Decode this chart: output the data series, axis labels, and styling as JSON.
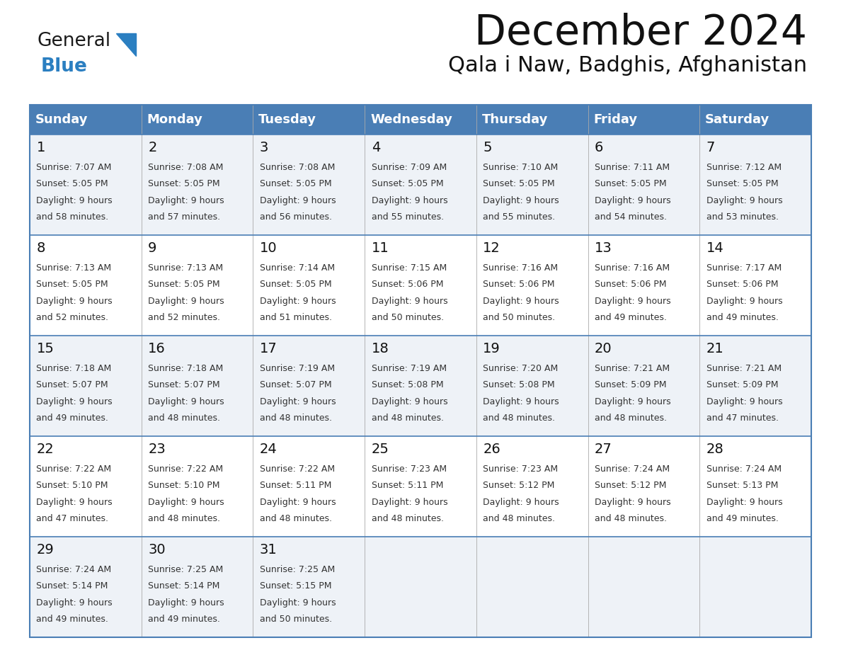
{
  "title": "December 2024",
  "subtitle": "Qala i Naw, Badghis, Afghanistan",
  "header_color": "#4a7eb5",
  "header_text_color": "#ffffff",
  "row_bg_even": "#eef2f7",
  "row_bg_odd": "#ffffff",
  "border_color": "#4a7eb5",
  "inner_border_color": "#cccccc",
  "text_color": "#333333",
  "day_num_color": "#111111",
  "logo_general_color": "#1a1a1a",
  "logo_blue_color": "#2b7fc1",
  "day_names": [
    "Sunday",
    "Monday",
    "Tuesday",
    "Wednesday",
    "Thursday",
    "Friday",
    "Saturday"
  ],
  "calendar_data": [
    [
      {
        "day": 1,
        "sunrise": "7:07 AM",
        "sunset": "5:05 PM",
        "daylight_line1": "9 hours",
        "daylight_line2": "and 58 minutes."
      },
      {
        "day": 2,
        "sunrise": "7:08 AM",
        "sunset": "5:05 PM",
        "daylight_line1": "9 hours",
        "daylight_line2": "and 57 minutes."
      },
      {
        "day": 3,
        "sunrise": "7:08 AM",
        "sunset": "5:05 PM",
        "daylight_line1": "9 hours",
        "daylight_line2": "and 56 minutes."
      },
      {
        "day": 4,
        "sunrise": "7:09 AM",
        "sunset": "5:05 PM",
        "daylight_line1": "9 hours",
        "daylight_line2": "and 55 minutes."
      },
      {
        "day": 5,
        "sunrise": "7:10 AM",
        "sunset": "5:05 PM",
        "daylight_line1": "9 hours",
        "daylight_line2": "and 55 minutes."
      },
      {
        "day": 6,
        "sunrise": "7:11 AM",
        "sunset": "5:05 PM",
        "daylight_line1": "9 hours",
        "daylight_line2": "and 54 minutes."
      },
      {
        "day": 7,
        "sunrise": "7:12 AM",
        "sunset": "5:05 PM",
        "daylight_line1": "9 hours",
        "daylight_line2": "and 53 minutes."
      }
    ],
    [
      {
        "day": 8,
        "sunrise": "7:13 AM",
        "sunset": "5:05 PM",
        "daylight_line1": "9 hours",
        "daylight_line2": "and 52 minutes."
      },
      {
        "day": 9,
        "sunrise": "7:13 AM",
        "sunset": "5:05 PM",
        "daylight_line1": "9 hours",
        "daylight_line2": "and 52 minutes."
      },
      {
        "day": 10,
        "sunrise": "7:14 AM",
        "sunset": "5:05 PM",
        "daylight_line1": "9 hours",
        "daylight_line2": "and 51 minutes."
      },
      {
        "day": 11,
        "sunrise": "7:15 AM",
        "sunset": "5:06 PM",
        "daylight_line1": "9 hours",
        "daylight_line2": "and 50 minutes."
      },
      {
        "day": 12,
        "sunrise": "7:16 AM",
        "sunset": "5:06 PM",
        "daylight_line1": "9 hours",
        "daylight_line2": "and 50 minutes."
      },
      {
        "day": 13,
        "sunrise": "7:16 AM",
        "sunset": "5:06 PM",
        "daylight_line1": "9 hours",
        "daylight_line2": "and 49 minutes."
      },
      {
        "day": 14,
        "sunrise": "7:17 AM",
        "sunset": "5:06 PM",
        "daylight_line1": "9 hours",
        "daylight_line2": "and 49 minutes."
      }
    ],
    [
      {
        "day": 15,
        "sunrise": "7:18 AM",
        "sunset": "5:07 PM",
        "daylight_line1": "9 hours",
        "daylight_line2": "and 49 minutes."
      },
      {
        "day": 16,
        "sunrise": "7:18 AM",
        "sunset": "5:07 PM",
        "daylight_line1": "9 hours",
        "daylight_line2": "and 48 minutes."
      },
      {
        "day": 17,
        "sunrise": "7:19 AM",
        "sunset": "5:07 PM",
        "daylight_line1": "9 hours",
        "daylight_line2": "and 48 minutes."
      },
      {
        "day": 18,
        "sunrise": "7:19 AM",
        "sunset": "5:08 PM",
        "daylight_line1": "9 hours",
        "daylight_line2": "and 48 minutes."
      },
      {
        "day": 19,
        "sunrise": "7:20 AM",
        "sunset": "5:08 PM",
        "daylight_line1": "9 hours",
        "daylight_line2": "and 48 minutes."
      },
      {
        "day": 20,
        "sunrise": "7:21 AM",
        "sunset": "5:09 PM",
        "daylight_line1": "9 hours",
        "daylight_line2": "and 48 minutes."
      },
      {
        "day": 21,
        "sunrise": "7:21 AM",
        "sunset": "5:09 PM",
        "daylight_line1": "9 hours",
        "daylight_line2": "and 47 minutes."
      }
    ],
    [
      {
        "day": 22,
        "sunrise": "7:22 AM",
        "sunset": "5:10 PM",
        "daylight_line1": "9 hours",
        "daylight_line2": "and 47 minutes."
      },
      {
        "day": 23,
        "sunrise": "7:22 AM",
        "sunset": "5:10 PM",
        "daylight_line1": "9 hours",
        "daylight_line2": "and 48 minutes."
      },
      {
        "day": 24,
        "sunrise": "7:22 AM",
        "sunset": "5:11 PM",
        "daylight_line1": "9 hours",
        "daylight_line2": "and 48 minutes."
      },
      {
        "day": 25,
        "sunrise": "7:23 AM",
        "sunset": "5:11 PM",
        "daylight_line1": "9 hours",
        "daylight_line2": "and 48 minutes."
      },
      {
        "day": 26,
        "sunrise": "7:23 AM",
        "sunset": "5:12 PM",
        "daylight_line1": "9 hours",
        "daylight_line2": "and 48 minutes."
      },
      {
        "day": 27,
        "sunrise": "7:24 AM",
        "sunset": "5:12 PM",
        "daylight_line1": "9 hours",
        "daylight_line2": "and 48 minutes."
      },
      {
        "day": 28,
        "sunrise": "7:24 AM",
        "sunset": "5:13 PM",
        "daylight_line1": "9 hours",
        "daylight_line2": "and 49 minutes."
      }
    ],
    [
      {
        "day": 29,
        "sunrise": "7:24 AM",
        "sunset": "5:14 PM",
        "daylight_line1": "9 hours",
        "daylight_line2": "and 49 minutes."
      },
      {
        "day": 30,
        "sunrise": "7:25 AM",
        "sunset": "5:14 PM",
        "daylight_line1": "9 hours",
        "daylight_line2": "and 49 minutes."
      },
      {
        "day": 31,
        "sunrise": "7:25 AM",
        "sunset": "5:15 PM",
        "daylight_line1": "9 hours",
        "daylight_line2": "and 50 minutes."
      },
      null,
      null,
      null,
      null
    ]
  ]
}
